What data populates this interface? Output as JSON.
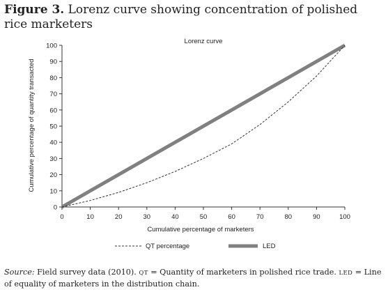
{
  "figure": {
    "number": "Figure 3.",
    "title": "Lorenz curve showing concentration of polished rice marketers"
  },
  "caption": {
    "source_label": "Source:",
    "source_text": "Field survey data (2010).",
    "qt_abbr": "QT",
    "qt_text": "= Quantity of marketers in polished rice trade.",
    "led_abbr": "LED",
    "led_text": "= Line of equality of marketers in the distribution chain."
  },
  "chart_data": {
    "type": "line",
    "title": "Lorenz curve",
    "xlabel": "Cumulative percentage of marketers",
    "ylabel": "Cumulative percentage of quantity transacted",
    "xlim": [
      0,
      100
    ],
    "ylim": [
      0,
      100
    ],
    "xticks": [
      0,
      10,
      20,
      30,
      40,
      50,
      60,
      70,
      80,
      90,
      100
    ],
    "yticks": [
      0,
      10,
      20,
      30,
      40,
      50,
      60,
      70,
      80,
      90,
      100
    ],
    "grid": false,
    "legend": "bottom",
    "series": [
      {
        "name": "QT percentage",
        "style": "dashed",
        "color": "#333333",
        "x": [
          0,
          10,
          20,
          30,
          40,
          50,
          60,
          70,
          80,
          90,
          100
        ],
        "y": [
          0,
          4,
          9,
          15,
          22,
          30,
          39,
          51,
          65,
          81,
          100
        ]
      },
      {
        "name": "LED",
        "style": "solid-thick",
        "color": "#808080",
        "x": [
          0,
          100
        ],
        "y": [
          0,
          100
        ]
      }
    ]
  }
}
